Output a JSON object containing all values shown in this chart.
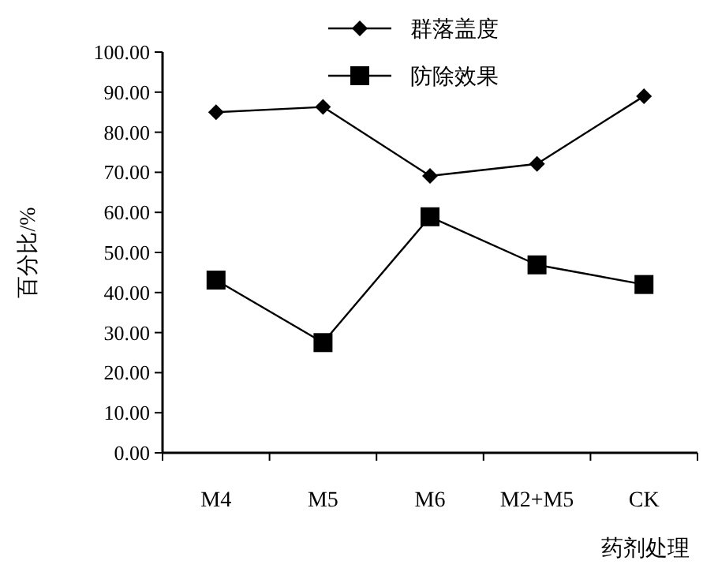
{
  "chart_data": {
    "type": "line",
    "xlabel": "药剂处理",
    "ylabel": "百分比/%",
    "categories": [
      "M4",
      "M5",
      "M6",
      "M2+M5",
      "CK"
    ],
    "series": [
      {
        "name": "群落盖度",
        "color": "#000000",
        "marker": "diamond",
        "values": [
          85.0,
          86.3,
          69.1,
          72.1,
          89.0
        ]
      },
      {
        "name": "防除效果",
        "color": "#000000",
        "marker": "square",
        "values": [
          43.1,
          27.5,
          58.9,
          46.9,
          42.0
        ]
      }
    ],
    "ylim": [
      0,
      100
    ],
    "yticks": [
      {
        "value": 0,
        "label": "0.00"
      },
      {
        "value": 10,
        "label": "10.00"
      },
      {
        "value": 20,
        "label": "20.00"
      },
      {
        "value": 30,
        "label": "30.00"
      },
      {
        "value": 40,
        "label": "40.00"
      },
      {
        "value": 50,
        "label": "50.00"
      },
      {
        "value": 60,
        "label": "60.00"
      },
      {
        "value": 70,
        "label": "70.00"
      },
      {
        "value": 80,
        "label": "80.00"
      },
      {
        "value": 90,
        "label": "90.00"
      },
      {
        "value": 100,
        "label": "100.00"
      }
    ],
    "legend": "top",
    "grid": false,
    "line_style": "solid"
  }
}
